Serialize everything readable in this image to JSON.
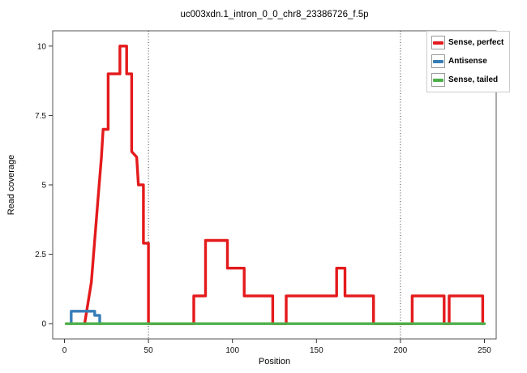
{
  "chart_data": {
    "type": "line",
    "title": "uc003xdn.1_intron_0_0_chr8_23386726_f.5p",
    "xlabel": "Position",
    "ylabel": "Read coverage",
    "xlim": [
      0,
      250
    ],
    "ylim": [
      0,
      10
    ],
    "xpad": 7,
    "ypad": 0.55,
    "xticks": [
      "0",
      "50",
      "100",
      "150",
      "200",
      "250"
    ],
    "yticks": [
      "0",
      "2.5",
      "5",
      "7.5",
      "10"
    ],
    "grid": false,
    "vlines": [
      50,
      200
    ],
    "legend_position": "top-right-outside",
    "legend": [
      {
        "label": "Sense, perfect",
        "color": "#E41A1C"
      },
      {
        "label": "Antisense",
        "color": "#377EB8"
      },
      {
        "label": "Sense, tailed",
        "color": "#4DAF4A"
      }
    ],
    "series": [
      {
        "id": "sense-perfect",
        "name": "Sense, perfect",
        "color": "#E41A1C",
        "points": [
          [
            12,
            0
          ],
          [
            16,
            1.5
          ],
          [
            18,
            3
          ],
          [
            20,
            4.5
          ],
          [
            22,
            6
          ],
          [
            23,
            7
          ],
          [
            26,
            7
          ],
          [
            26,
            9
          ],
          [
            33,
            9
          ],
          [
            33,
            10
          ],
          [
            37,
            10
          ],
          [
            37,
            9
          ],
          [
            40,
            9
          ],
          [
            40,
            6.2
          ],
          [
            43,
            6
          ],
          [
            44,
            5
          ],
          [
            47,
            5
          ],
          [
            47,
            2.9
          ],
          [
            50,
            2.9
          ],
          [
            50,
            0
          ],
          [
            77,
            0
          ],
          [
            77,
            1
          ],
          [
            84,
            1
          ],
          [
            84,
            3
          ],
          [
            97,
            3
          ],
          [
            97,
            2
          ],
          [
            107,
            2
          ],
          [
            107,
            1
          ],
          [
            124,
            1
          ],
          [
            124,
            0
          ],
          [
            132,
            0
          ],
          [
            132,
            1
          ],
          [
            162,
            1
          ],
          [
            162,
            2
          ],
          [
            167,
            2
          ],
          [
            167,
            1
          ],
          [
            184,
            1
          ],
          [
            184,
            0
          ],
          [
            207,
            0
          ],
          [
            207,
            1
          ],
          [
            226,
            1
          ],
          [
            226,
            0
          ],
          [
            229,
            0
          ],
          [
            229,
            1
          ],
          [
            249,
            1
          ],
          [
            249,
            0
          ]
        ]
      },
      {
        "id": "antisense",
        "name": "Antisense",
        "color": "#377EB8",
        "points": [
          [
            4,
            0
          ],
          [
            4,
            0.45
          ],
          [
            18,
            0.45
          ],
          [
            18,
            0.3
          ],
          [
            21,
            0.3
          ],
          [
            21,
            0
          ]
        ]
      },
      {
        "id": "sense-tailed",
        "name": "Sense, tailed",
        "color": "#4DAF4A",
        "points": [
          [
            1,
            0
          ],
          [
            250,
            0
          ]
        ]
      }
    ]
  }
}
